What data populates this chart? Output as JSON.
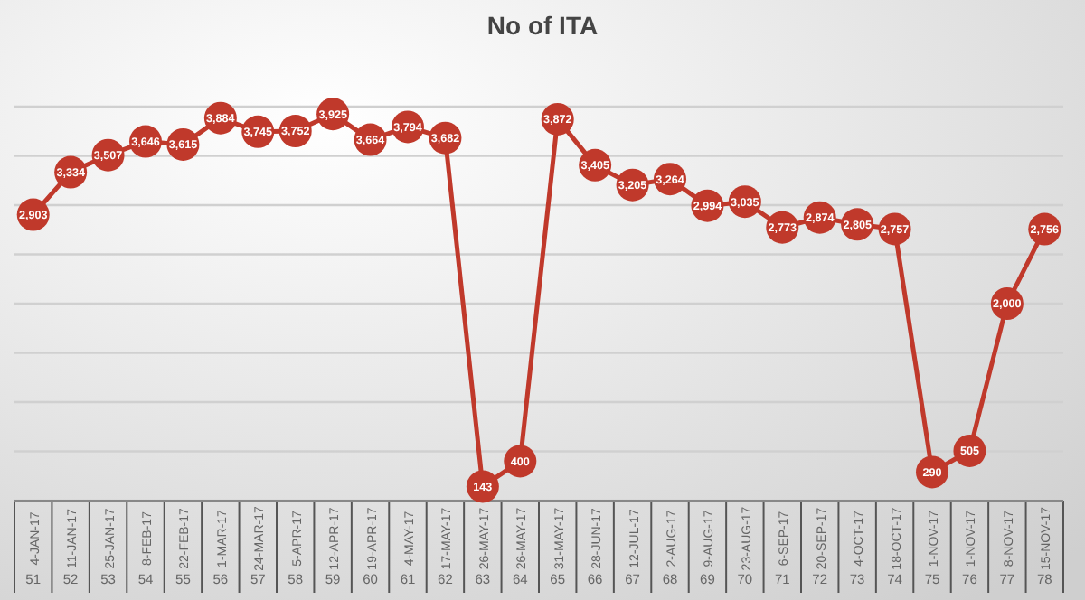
{
  "chart_data": {
    "type": "line",
    "title": "No of ITA",
    "categories": [
      "4-JAN-17\n51",
      "11-JAN-17\n52",
      "25-JAN-17\n53",
      "8-FEB-17\n54",
      "22-FEB-17\n55",
      "1-MAR-17\n56",
      "24-MAR-17\n57",
      "5-APR-17\n58",
      "12-APR-17\n59",
      "19-APR-17\n60",
      "4-MAY-17\n61",
      "17-MAY-17\n62",
      "26-MAY-17\n63",
      "26-MAY-17\n64",
      "31-MAY-17\n65",
      "28-JUN-17\n66",
      "12-JUL-17\n67",
      "2-AUG-17\n68",
      "9-AUG-17\n69",
      "23-AUG-17\n70",
      "6-SEP-17\n71",
      "20-SEP-17\n72",
      "4-OCT-17\n73",
      "18-OCT-17\n74",
      "1-NOV-17\n75",
      "1-NOV-17\n76",
      "8-NOV-17\n77",
      "15-NOV-17\n78"
    ],
    "series": [
      {
        "color": "#c0392b",
        "values": [
          2903,
          3334,
          3507,
          3646,
          3615,
          3884,
          3745,
          3752,
          3925,
          3664,
          3794,
          3682,
          143,
          400,
          3872,
          3405,
          3205,
          3264,
          2994,
          3035,
          2773,
          2874,
          2805,
          2757,
          290,
          505,
          2000,
          2756
        ],
        "value_labels": [
          "2,903",
          "3,334",
          "3,507",
          "3,646",
          "3,615",
          "3,884",
          "3,745",
          "3,752",
          "3,925",
          "3,664",
          "3,794",
          "3,682",
          "143",
          "400",
          "3,872",
          "3,405",
          "3,205",
          "3,264",
          "2,994",
          "3,035",
          "2,773",
          "2,874",
          "2,805",
          "2,757",
          "290",
          "505",
          "2,000",
          "2,756"
        ]
      }
    ],
    "ylim": [
      0,
      4000
    ],
    "yticks": [
      {
        "value": 0,
        "label": null
      },
      {
        "value": 500,
        "label": null
      },
      {
        "value": 1000,
        "label": null
      },
      {
        "value": 1500,
        "label": null
      },
      {
        "value": 2000,
        "label": null
      },
      {
        "value": 2500,
        "label": null
      },
      {
        "value": 3000,
        "label": null
      },
      {
        "value": 3500,
        "label": null
      },
      {
        "value": 4000,
        "label": null
      }
    ],
    "tick_labels": "x",
    "grid": "y",
    "marker": "circle"
  }
}
